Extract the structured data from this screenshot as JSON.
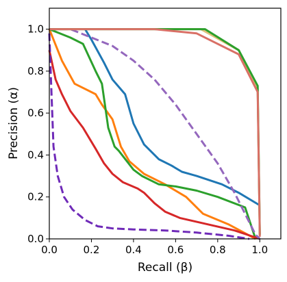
{
  "chart_data": {
    "type": "line",
    "title": "",
    "xlabel": "Recall (β)",
    "ylabel": "Precision (α)",
    "xlim": [
      0.0,
      1.1
    ],
    "ylim": [
      0.0,
      1.1
    ],
    "xticks": [
      "0.0",
      "0.2",
      "0.4",
      "0.6",
      "0.8",
      "1.0"
    ],
    "yticks": [
      "0.0",
      "0.2",
      "0.4",
      "0.6",
      "0.8",
      "1.0"
    ],
    "grid": false,
    "legend": "none",
    "series": [
      {
        "color": "#1f77b4",
        "dash": "solid",
        "points": [
          [
            0.17,
            1.0
          ],
          [
            0.2,
            0.95
          ],
          [
            0.26,
            0.84
          ],
          [
            0.3,
            0.76
          ],
          [
            0.36,
            0.69
          ],
          [
            0.4,
            0.55
          ],
          [
            0.45,
            0.45
          ],
          [
            0.52,
            0.38
          ],
          [
            0.58,
            0.35
          ],
          [
            0.63,
            0.32
          ],
          [
            0.7,
            0.3
          ],
          [
            0.82,
            0.26
          ],
          [
            0.9,
            0.22
          ],
          [
            1.0,
            0.16
          ]
        ]
      },
      {
        "color": "#ff7f0e",
        "dash": "solid",
        "points": [
          [
            0.0,
            1.0
          ],
          [
            0.06,
            0.85
          ],
          [
            0.12,
            0.74
          ],
          [
            0.22,
            0.69
          ],
          [
            0.25,
            0.64
          ],
          [
            0.3,
            0.57
          ],
          [
            0.34,
            0.44
          ],
          [
            0.38,
            0.37
          ],
          [
            0.45,
            0.31
          ],
          [
            0.55,
            0.26
          ],
          [
            0.65,
            0.2
          ],
          [
            0.73,
            0.12
          ],
          [
            0.85,
            0.07
          ],
          [
            0.98,
            0.0
          ]
        ]
      },
      {
        "color": "#2ca02c",
        "dash": "solid",
        "points": [
          [
            0.0,
            1.0
          ],
          [
            0.1,
            0.96
          ],
          [
            0.16,
            0.93
          ],
          [
            0.22,
            0.8
          ],
          [
            0.25,
            0.74
          ],
          [
            0.28,
            0.53
          ],
          [
            0.31,
            0.44
          ],
          [
            0.33,
            0.42
          ],
          [
            0.4,
            0.33
          ],
          [
            0.44,
            0.3
          ],
          [
            0.52,
            0.26
          ],
          [
            0.6,
            0.25
          ],
          [
            0.7,
            0.23
          ],
          [
            0.8,
            0.2
          ],
          [
            0.93,
            0.15
          ],
          [
            0.98,
            0.0
          ]
        ]
      },
      {
        "color": "#d62728",
        "dash": "solid",
        "points": [
          [
            0.0,
            0.9
          ],
          [
            0.03,
            0.76
          ],
          [
            0.06,
            0.69
          ],
          [
            0.1,
            0.61
          ],
          [
            0.16,
            0.53
          ],
          [
            0.22,
            0.43
          ],
          [
            0.26,
            0.36
          ],
          [
            0.3,
            0.31
          ],
          [
            0.35,
            0.27
          ],
          [
            0.42,
            0.24
          ],
          [
            0.45,
            0.22
          ],
          [
            0.5,
            0.17
          ],
          [
            0.55,
            0.13
          ],
          [
            0.62,
            0.1
          ],
          [
            0.75,
            0.07
          ],
          [
            0.88,
            0.04
          ],
          [
            1.0,
            0.0
          ]
        ]
      },
      {
        "color": "#9467bd",
        "dash": "dashed",
        "points": [
          [
            0.0,
            1.0
          ],
          [
            0.1,
            1.0
          ],
          [
            0.2,
            0.96
          ],
          [
            0.3,
            0.92
          ],
          [
            0.4,
            0.85
          ],
          [
            0.5,
            0.76
          ],
          [
            0.6,
            0.64
          ],
          [
            0.7,
            0.5
          ],
          [
            0.8,
            0.36
          ],
          [
            0.88,
            0.22
          ],
          [
            0.94,
            0.1
          ],
          [
            0.98,
            0.02
          ],
          [
            1.0,
            0.0
          ]
        ]
      },
      {
        "color": "#6f2ab8",
        "dash": "dashed",
        "points": [
          [
            0.0,
            0.98
          ],
          [
            0.01,
            0.7
          ],
          [
            0.02,
            0.44
          ],
          [
            0.04,
            0.3
          ],
          [
            0.07,
            0.2
          ],
          [
            0.11,
            0.14
          ],
          [
            0.17,
            0.09
          ],
          [
            0.23,
            0.06
          ],
          [
            0.3,
            0.05
          ],
          [
            0.4,
            0.045
          ],
          [
            0.55,
            0.04
          ],
          [
            0.7,
            0.03
          ],
          [
            0.85,
            0.015
          ],
          [
            0.95,
            0.0
          ]
        ]
      },
      {
        "color": "#e0c07a",
        "dash": "solid",
        "points": [
          [
            0.0,
            1.0
          ],
          [
            0.5,
            1.0
          ],
          [
            0.72,
            1.0
          ],
          [
            0.9,
            0.9
          ],
          [
            0.99,
            0.72
          ],
          [
            1.0,
            0.02
          ]
        ]
      },
      {
        "color": "#2ca02c",
        "dash": "solid",
        "points": [
          [
            0.0,
            1.0
          ],
          [
            0.5,
            1.0
          ],
          [
            0.74,
            1.0
          ],
          [
            0.9,
            0.9
          ],
          [
            0.99,
            0.73
          ],
          [
            1.0,
            0.02
          ]
        ]
      },
      {
        "color": "#d97066",
        "dash": "solid",
        "points": [
          [
            0.0,
            1.0
          ],
          [
            0.5,
            1.0
          ],
          [
            0.7,
            0.98
          ],
          [
            0.9,
            0.88
          ],
          [
            0.99,
            0.7
          ],
          [
            1.0,
            0.01
          ]
        ]
      }
    ]
  }
}
